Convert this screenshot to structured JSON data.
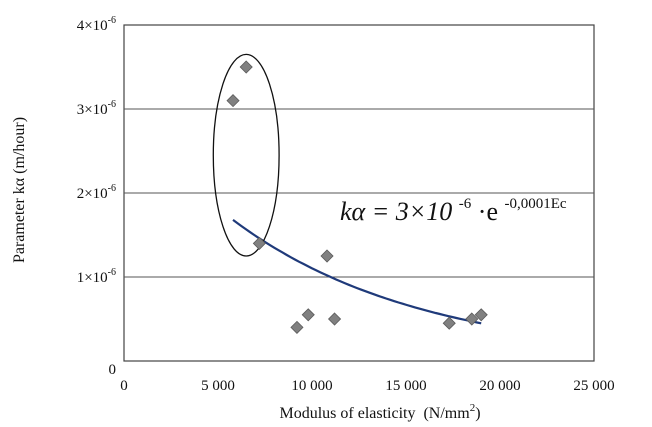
{
  "chart_data": {
    "type": "scatter",
    "xlabel": "Modulus of elasticity",
    "xlabel_unit": "(N/mm",
    "xlabel_unit_sup": "2",
    "xlabel_unit_close": ")",
    "ylabel": "Parameter  kα  (m/hour)",
    "xlim": [
      0,
      25000
    ],
    "ylim": [
      0,
      4e-06
    ],
    "grid": {
      "horizontal": true,
      "vertical": false
    },
    "x_ticks": [
      {
        "value": 0,
        "label": "0"
      },
      {
        "value": 5000,
        "label": "5 000"
      },
      {
        "value": 10000,
        "label": "10 000"
      },
      {
        "value": 15000,
        "label": "15 000"
      },
      {
        "value": 20000,
        "label": "20 000"
      },
      {
        "value": 25000,
        "label": "25 000"
      }
    ],
    "y_ticks": [
      {
        "value": 0,
        "base": "0",
        "exp": ""
      },
      {
        "value": 1e-06,
        "base": "1×10",
        "exp": "-6"
      },
      {
        "value": 2e-06,
        "base": "2×10",
        "exp": "-6"
      },
      {
        "value": 3e-06,
        "base": "3×10",
        "exp": "-6"
      },
      {
        "value": 4e-06,
        "base": "4×10",
        "exp": "-6"
      }
    ],
    "series": [
      {
        "marker": "diamond",
        "color": "#808080",
        "points": [
          {
            "x": 5800,
            "y": 3.1e-06
          },
          {
            "x": 6500,
            "y": 3.5e-06
          },
          {
            "x": 7200,
            "y": 1.4e-06
          },
          {
            "x": 9200,
            "y": 4e-07
          },
          {
            "x": 9800,
            "y": 5.5e-07
          },
          {
            "x": 10800,
            "y": 1.25e-06
          },
          {
            "x": 11200,
            "y": 5e-07
          },
          {
            "x": 17300,
            "y": 4.5e-07
          },
          {
            "x": 18500,
            "y": 5e-07
          },
          {
            "x": 19000,
            "y": 5.5e-07
          }
        ]
      }
    ],
    "trendline": {
      "type": "exponential",
      "a": 3e-06,
      "b": -0.0001,
      "x_range": [
        5800,
        19000
      ],
      "color": "#1f3a7a"
    },
    "annotations": [
      {
        "type": "ellipse",
        "center": {
          "x": 6500,
          "y": 2.45e-06
        },
        "rx": 1750,
        "ry": 1.2e-06,
        "color": "#111111"
      }
    ],
    "equation": {
      "lhs": "kα = 3×10",
      "lhs_sup": "-6",
      "dot": "·e",
      "rhs_sup": "-0,0001Ec"
    }
  }
}
